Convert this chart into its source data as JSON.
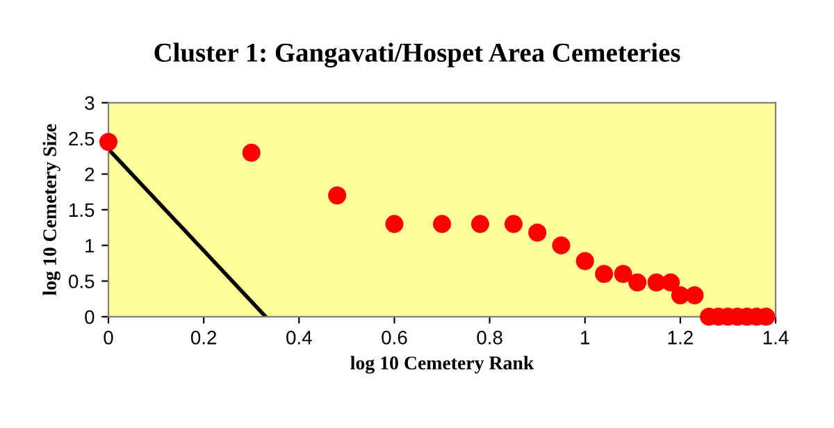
{
  "chart_data": {
    "type": "scatter",
    "title": "Cluster 1: Gangavati/Hospet Area Cemeteries",
    "xlabel": "log 10 Cemetery Rank",
    "ylabel": "log 10 Cemetery Size",
    "xlim": [
      0,
      1.4
    ],
    "xticks": [
      0,
      0.2,
      0.4,
      0.6,
      0.8,
      1,
      1.2,
      1.4
    ],
    "ylim": [
      0,
      3
    ],
    "yticks": [
      0,
      0.5,
      1,
      1.5,
      2,
      2.5,
      3
    ],
    "grid": false,
    "legend": false,
    "series": [
      {
        "marker": "circle",
        "color": "#ff0000",
        "x": [
          0,
          0.3,
          0.48,
          0.6,
          0.7,
          0.78,
          0.85,
          0.9,
          0.95,
          1,
          1.04,
          1.08,
          1.11,
          1.15,
          1.18,
          1.2,
          1.23,
          1.26,
          1.28,
          1.3,
          1.32,
          1.34,
          1.36,
          1.38
        ],
        "values": [
          2.45,
          2.3,
          1.7,
          1.3,
          1.3,
          1.3,
          1.3,
          1.18,
          1,
          0.78,
          0.6,
          0.6,
          0.48,
          0.48,
          0.48,
          0.3,
          0.3,
          0,
          0,
          0,
          0,
          0,
          0,
          0
        ]
      },
      {
        "type": "line",
        "marker": "none",
        "color": "#000000",
        "x": [
          0,
          0.33
        ],
        "values": [
          2.35,
          0
        ]
      }
    ]
  }
}
